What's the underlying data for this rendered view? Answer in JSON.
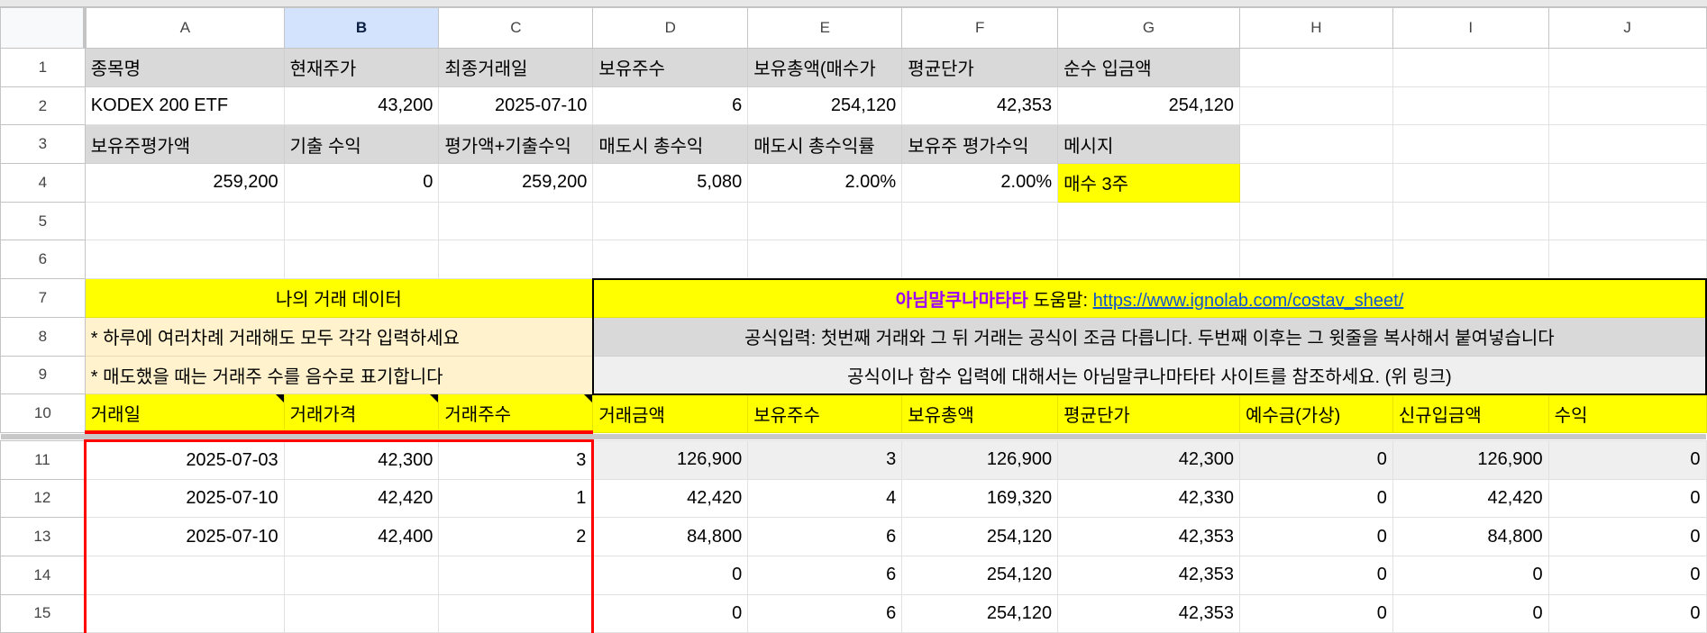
{
  "columns": [
    "A",
    "B",
    "C",
    "D",
    "E",
    "F",
    "G",
    "H",
    "I",
    "J"
  ],
  "selected_column": "B",
  "colors": {
    "yellow": "#ffff00",
    "header_gray": "#d9d9d9",
    "cream": "#fff2cc",
    "selection": "#d3e3fd",
    "red_border": "#ff0000",
    "purple": "#9900ff",
    "link": "#1155cc"
  },
  "summary": {
    "row1": [
      "종목명",
      "현재주가",
      "최종거래일",
      "보유주수",
      "보유총액(매수가",
      "평균단가",
      "순수 입금액",
      "",
      "",
      ""
    ],
    "row2": [
      "KODEX 200 ETF",
      "43,200",
      "2025-07-10",
      "6",
      "254,120",
      "42,353",
      "254,120",
      "",
      "",
      ""
    ],
    "row3": [
      "보유주평가액",
      "기출 수익",
      "평가액+기출수익",
      "매도시 총수익",
      "매도시 총수익률",
      "보유주 평가수익",
      "메시지",
      "",
      "",
      ""
    ],
    "row4": [
      "259,200",
      "0",
      "259,200",
      "5,080",
      "2.00%",
      "2.00%",
      "매수 3주",
      "",
      "",
      ""
    ]
  },
  "info": {
    "my_trades_title": "나의 거래 데이터",
    "note1": "* 하루에 여러차례 거래해도 모두 각각 입력하세요",
    "note2": "* 매도했을 때는 거래주 수를 음수로 표기합니다",
    "brand": "아님말쿠나마타타",
    "help_label": " 도움말: ",
    "help_url": "https://www.ignolab.com/costav_sheet/",
    "formula_note": "공식입력: 첫번째 거래와 그 뒤 거래는 공식이 조금 다릅니다. 두번째 이후는 그 윗줄을 복사해서 붙여넣습니다",
    "reference_note": "공식이나 함수 입력에 대해서는 아님말쿠나마타타 사이트를 참조하세요. (위 링크)"
  },
  "trade_headers": [
    "거래일",
    "거래가격",
    "거래주수",
    "거래금액",
    "보유주수",
    "보유총액",
    "평균단가",
    "예수금(가상)",
    "신규입금액",
    "수익"
  ],
  "trades": [
    [
      "2025-07-03",
      "42,300",
      "3",
      "126,900",
      "3",
      "126,900",
      "42,300",
      "0",
      "126,900",
      "0"
    ],
    [
      "2025-07-10",
      "42,420",
      "1",
      "42,420",
      "4",
      "169,320",
      "42,330",
      "0",
      "42,420",
      "0"
    ],
    [
      "2025-07-10",
      "42,400",
      "2",
      "84,800",
      "6",
      "254,120",
      "42,353",
      "0",
      "84,800",
      "0"
    ],
    [
      "",
      "",
      "",
      "0",
      "6",
      "254,120",
      "42,353",
      "0",
      "0",
      "0"
    ],
    [
      "",
      "",
      "",
      "0",
      "6",
      "254,120",
      "42,353",
      "0",
      "0",
      "0"
    ]
  ],
  "row_numbers": [
    "1",
    "2",
    "3",
    "4",
    "5",
    "6",
    "7",
    "8",
    "9",
    "10",
    "11",
    "12",
    "13",
    "14",
    "15"
  ]
}
